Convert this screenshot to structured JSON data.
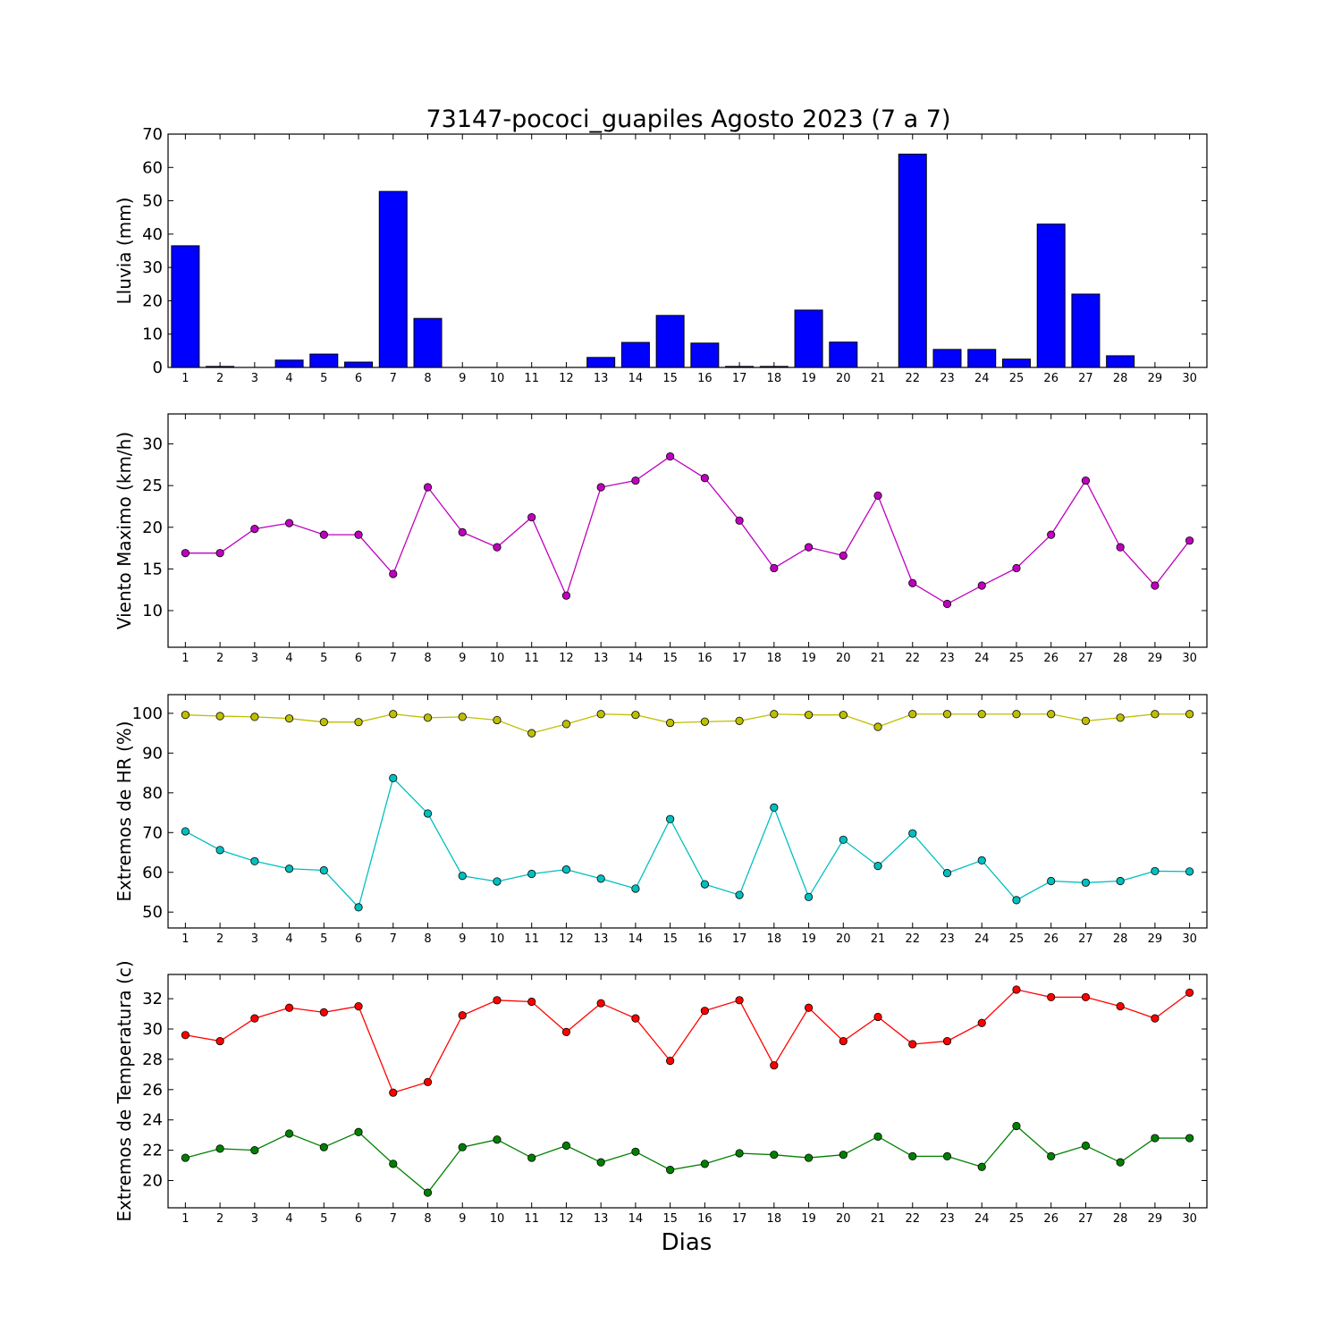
{
  "chart_data": {
    "title": "73147-pococi_guapiles Agosto 2023  (7 a 7)",
    "xlabel": "Dias",
    "days": [
      1,
      2,
      3,
      4,
      5,
      6,
      7,
      8,
      9,
      10,
      11,
      12,
      13,
      14,
      15,
      16,
      17,
      18,
      19,
      20,
      21,
      22,
      23,
      24,
      25,
      26,
      27,
      28,
      29,
      30
    ],
    "panels": [
      {
        "type": "bar",
        "ylabel": "Lluvia (mm)",
        "ylim": [
          0,
          70
        ],
        "yticks": [
          0,
          10,
          20,
          30,
          40,
          50,
          60,
          70
        ],
        "series": [
          {
            "color": "#0000ff",
            "values": [
              36.5,
              0.3,
              0.0,
              2.2,
              4.0,
              1.6,
              52.8,
              14.7,
              0.0,
              0.0,
              0.0,
              0.0,
              3.0,
              7.5,
              15.6,
              7.3,
              0.3,
              0.3,
              17.2,
              7.6,
              0.0,
              64.0,
              5.4,
              5.4,
              2.5,
              43.0,
              22.0,
              3.5,
              0.0,
              0.0
            ]
          }
        ]
      },
      {
        "type": "line",
        "ylabel": "Viento Maximo (km/h)",
        "ylim": [
          5.6,
          33.6
        ],
        "yticks": [
          10,
          15,
          20,
          25,
          30
        ],
        "series": [
          {
            "color": "#bf00bf",
            "values": [
              16.9,
              16.9,
              19.8,
              20.5,
              19.1,
              19.1,
              14.4,
              24.8,
              19.4,
              17.6,
              21.2,
              11.8,
              24.8,
              25.6,
              28.5,
              25.9,
              20.8,
              15.1,
              17.6,
              16.6,
              23.8,
              13.3,
              10.8,
              13.0,
              15.1,
              19.1,
              25.6,
              17.6,
              13.0,
              18.4
            ]
          }
        ]
      },
      {
        "type": "line",
        "ylabel": "Extremos de HR (%)",
        "ylim": [
          46,
          104.7
        ],
        "yticks": [
          50,
          60,
          70,
          80,
          90,
          100
        ],
        "series": [
          {
            "color": "#bfbf00",
            "values": [
              99.6,
              99.3,
              99.1,
              98.7,
              97.8,
              97.8,
              99.8,
              98.9,
              99.1,
              98.3,
              95.0,
              97.3,
              99.8,
              99.6,
              97.6,
              97.9,
              98.1,
              99.8,
              99.6,
              99.6,
              96.6,
              99.8,
              99.8,
              99.8,
              99.8,
              99.8,
              98.1,
              98.9,
              99.8,
              99.8
            ]
          },
          {
            "color": "#00bfbf",
            "values": [
              70.3,
              65.6,
              62.8,
              60.9,
              60.5,
              51.2,
              83.7,
              74.8,
              59.1,
              57.7,
              59.6,
              60.7,
              58.4,
              55.9,
              73.4,
              57.0,
              54.3,
              76.3,
              53.8,
              68.2,
              61.6,
              69.8,
              59.8,
              63.0,
              53.0,
              57.8,
              57.4,
              57.8,
              60.3,
              60.2
            ]
          }
        ]
      },
      {
        "type": "line",
        "ylabel": "Extremos de Temperatura (c)",
        "ylim": [
          18.2,
          33.6
        ],
        "yticks": [
          20,
          22,
          24,
          26,
          28,
          30,
          32
        ],
        "series": [
          {
            "color": "#ff0000",
            "values": [
              29.6,
              29.2,
              30.7,
              31.4,
              31.1,
              31.5,
              25.8,
              26.5,
              30.9,
              31.9,
              31.8,
              29.8,
              31.7,
              30.7,
              27.9,
              31.2,
              31.9,
              27.6,
              31.4,
              29.2,
              30.8,
              29.0,
              29.2,
              30.4,
              32.6,
              32.1,
              32.1,
              31.5,
              30.7,
              32.4
            ]
          },
          {
            "color": "#008000",
            "values": [
              21.5,
              22.1,
              22.0,
              23.1,
              22.2,
              23.2,
              21.1,
              19.2,
              22.2,
              22.7,
              21.5,
              22.3,
              21.2,
              21.9,
              20.7,
              21.1,
              21.8,
              21.7,
              21.5,
              21.7,
              22.9,
              21.6,
              21.6,
              20.9,
              23.6,
              21.6,
              22.3,
              21.2,
              22.8,
              22.8
            ]
          }
        ]
      }
    ]
  }
}
